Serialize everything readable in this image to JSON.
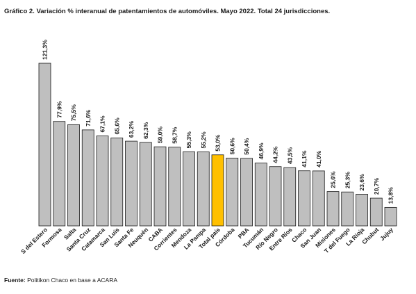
{
  "chart_data": {
    "type": "bar",
    "title": "Gráfico 2. Variación % interanual de patentamientos de automóviles. Mayo 2022. Total 24 jurisdicciones.",
    "xlabel": "",
    "ylabel": "",
    "ylim": [
      0,
      121.3
    ],
    "grid": false,
    "legend": "none",
    "bar_color": "#bfbfbf",
    "highlight_color": "#ffc000",
    "highlight_category": "Total país",
    "categories": [
      "S del Estero",
      "Formosa",
      "Salta",
      "Santa Cruz",
      "Catamarca",
      "San Luis",
      "Santa Fe",
      "Neuquén",
      "CABA",
      "Corrientes",
      "Mendoza",
      "La Pampa",
      "Total país",
      "Córdoba",
      "PBA",
      "Tucumán",
      "Río Negro",
      "Entre Ríos",
      "Chaco",
      "San Juan",
      "Misiones",
      "T del Fuego",
      "La Rioja",
      "Chubut",
      "Jujuy"
    ],
    "values": [
      121.3,
      77.9,
      75.5,
      71.6,
      67.1,
      65.6,
      63.2,
      62.3,
      59.0,
      58.7,
      55.3,
      55.2,
      53.0,
      50.6,
      50.4,
      46.9,
      44.2,
      43.5,
      41.1,
      41.0,
      25.6,
      25.3,
      23.6,
      20.7,
      13.8
    ],
    "value_labels": [
      "121,3%",
      "77,9%",
      "75,5%",
      "71,6%",
      "67,1%",
      "65,6%",
      "63,2%",
      "62,3%",
      "59,0%",
      "58,7%",
      "55,3%",
      "55,2%",
      "53,0%",
      "50,6%",
      "50,4%",
      "46,9%",
      "44,2%",
      "43,5%",
      "41,1%",
      "41,0%",
      "25,6%",
      "25,3%",
      "23,6%",
      "20,7%",
      "13,8%"
    ]
  },
  "source": {
    "label": "Fuente:",
    "text": " Politikon Chaco en base a ACARA"
  }
}
